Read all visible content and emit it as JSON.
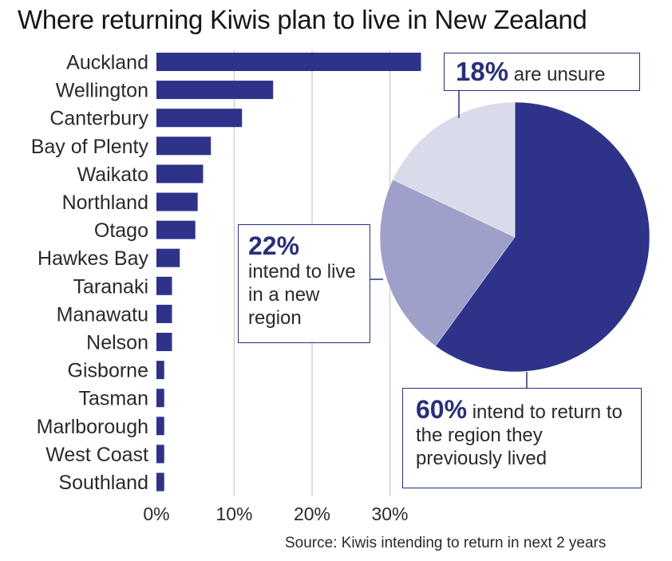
{
  "title": "Where returning Kiwis plan to live in New Zealand",
  "source": "Source: Kiwis intending to return in next 2 years",
  "colors": {
    "bar": "#2e3389",
    "pie_dark": "#2e3389",
    "pie_mid": "#9ea0c9",
    "pie_light": "#dadbea",
    "callout_border": "#283079",
    "gridline": "#d0d0d0"
  },
  "callouts": {
    "unsure": {
      "pct": "18%",
      "text": "are unsure"
    },
    "new_region": {
      "pct": "22%",
      "text": "intend to live in a new region"
    },
    "return": {
      "pct": "60%",
      "text": "intend to return to the region they previously lived"
    }
  },
  "chart_data": [
    {
      "type": "bar",
      "orientation": "horizontal",
      "categories": [
        "Auckland",
        "Wellington",
        "Canterbury",
        "Bay of Plenty",
        "Waikato",
        "Northland",
        "Otago",
        "Hawkes Bay",
        "Taranaki",
        "Manawatu",
        "Nelson",
        "Gisborne",
        "Tasman",
        "Marlborough",
        "West Coast",
        "Southland"
      ],
      "values": [
        34,
        15,
        11,
        7,
        6,
        5.3,
        5,
        3,
        2,
        2,
        2,
        1,
        1,
        1,
        1,
        1
      ],
      "xlim": [
        0,
        34
      ],
      "xticks": [
        0,
        10,
        20,
        30
      ],
      "xtick_labels": [
        "0%",
        "10%",
        "20%",
        "30%"
      ],
      "grid": true
    },
    {
      "type": "pie",
      "labels": [
        "intend to return to the region they previously lived",
        "intend to live in a new region",
        "are unsure"
      ],
      "values": [
        60,
        22,
        18
      ]
    }
  ]
}
